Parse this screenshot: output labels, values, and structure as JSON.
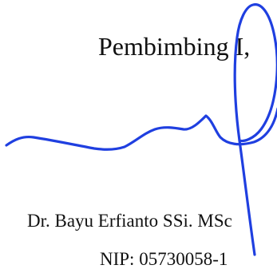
{
  "document": {
    "role_title": "Pembimbing I,",
    "signer_name": "Dr. Bayu Erfianto SSi. MSc",
    "signer_nip": "NIP: 05730058-1"
  },
  "signature": {
    "ink_color": "#1f3fe0"
  }
}
